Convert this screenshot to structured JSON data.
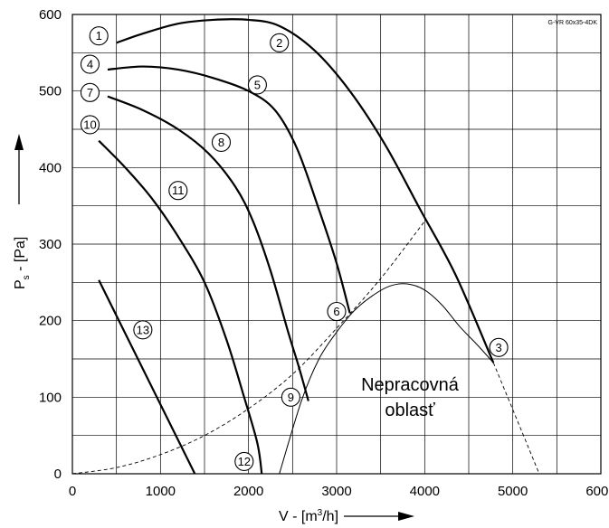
{
  "chart_data": {
    "type": "line",
    "model": "G-VR 60x35-4DK",
    "xlabel": "V - [m",
    "xlabel_sup": "3",
    "xlabel_tail": "/h]",
    "ylabel": "P",
    "ylabel_sub": "s",
    "ylabel_tail": " - [Pa]",
    "xlim": [
      0,
      6000
    ],
    "ylim": [
      0,
      600
    ],
    "x_ticks": [
      0,
      1000,
      2000,
      3000,
      4000,
      5000,
      6000
    ],
    "y_ticks": [
      0,
      100,
      200,
      300,
      400,
      500,
      600
    ],
    "grid": true,
    "region_label_line1": "Nepracovná",
    "region_label_line2": "oblasť",
    "series": [
      {
        "id": "c1-2-3",
        "style": "thick",
        "points": [
          [
            500,
            563
          ],
          [
            800,
            575
          ],
          [
            1200,
            588
          ],
          [
            1600,
            593
          ],
          [
            2000,
            593
          ],
          [
            2350,
            585
          ],
          [
            2750,
            553
          ],
          [
            3150,
            500
          ],
          [
            3550,
            430
          ],
          [
            3950,
            345
          ],
          [
            4350,
            260
          ],
          [
            4780,
            145
          ]
        ]
      },
      {
        "id": "c4-5-6",
        "style": "thick",
        "points": [
          [
            400,
            528
          ],
          [
            800,
            532
          ],
          [
            1200,
            528
          ],
          [
            1600,
            517
          ],
          [
            2000,
            500
          ],
          [
            2300,
            475
          ],
          [
            2550,
            425
          ],
          [
            2800,
            345
          ],
          [
            3000,
            275
          ],
          [
            3150,
            210
          ]
        ]
      },
      {
        "id": "c7-8-9",
        "style": "thick",
        "points": [
          [
            400,
            493
          ],
          [
            800,
            475
          ],
          [
            1200,
            450
          ],
          [
            1550,
            418
          ],
          [
            1850,
            375
          ],
          [
            2050,
            330
          ],
          [
            2250,
            265
          ],
          [
            2450,
            185
          ],
          [
            2570,
            140
          ],
          [
            2680,
            95
          ]
        ]
      },
      {
        "id": "c10-11-12",
        "style": "thick",
        "points": [
          [
            300,
            435
          ],
          [
            600,
            400
          ],
          [
            900,
            360
          ],
          [
            1200,
            310
          ],
          [
            1500,
            250
          ],
          [
            1750,
            175
          ],
          [
            1950,
            100
          ],
          [
            2100,
            40
          ],
          [
            2150,
            0
          ]
        ]
      },
      {
        "id": "c13",
        "style": "thick",
        "points": [
          [
            300,
            253
          ],
          [
            1390,
            0
          ]
        ]
      },
      {
        "id": "system",
        "style": "dashed",
        "points": [
          [
            0,
            0
          ],
          [
            500,
            8
          ],
          [
            1000,
            25
          ],
          [
            1500,
            50
          ],
          [
            2000,
            85
          ],
          [
            2500,
            130
          ],
          [
            3000,
            190
          ],
          [
            3500,
            255
          ],
          [
            4000,
            330
          ]
        ]
      },
      {
        "id": "boundary-left",
        "style": "thin",
        "points": [
          [
            2350,
            0
          ],
          [
            2600,
            95
          ],
          [
            2800,
            150
          ],
          [
            3000,
            185
          ],
          [
            3200,
            213
          ],
          [
            3400,
            232
          ],
          [
            3600,
            245
          ],
          [
            3800,
            248
          ],
          [
            4000,
            240
          ],
          [
            4200,
            220
          ],
          [
            4400,
            192
          ],
          [
            4600,
            168
          ],
          [
            4780,
            145
          ]
        ]
      },
      {
        "id": "boundary-right",
        "style": "dashed",
        "points": [
          [
            4780,
            145
          ],
          [
            5050,
            70
          ],
          [
            5300,
            0
          ]
        ]
      }
    ],
    "markers": [
      {
        "label": "1",
        "x": 300,
        "y": 572
      },
      {
        "label": "2",
        "x": 2350,
        "y": 563
      },
      {
        "label": "3",
        "x": 4840,
        "y": 165
      },
      {
        "label": "4",
        "x": 200,
        "y": 535
      },
      {
        "label": "5",
        "x": 2100,
        "y": 508
      },
      {
        "label": "6",
        "x": 3000,
        "y": 212
      },
      {
        "label": "7",
        "x": 200,
        "y": 498
      },
      {
        "label": "8",
        "x": 1690,
        "y": 433
      },
      {
        "label": "9",
        "x": 2480,
        "y": 100
      },
      {
        "label": "10",
        "x": 200,
        "y": 456
      },
      {
        "label": "11",
        "x": 1200,
        "y": 370
      },
      {
        "label": "12",
        "x": 1950,
        "y": 16
      },
      {
        "label": "13",
        "x": 800,
        "y": 188
      }
    ]
  }
}
